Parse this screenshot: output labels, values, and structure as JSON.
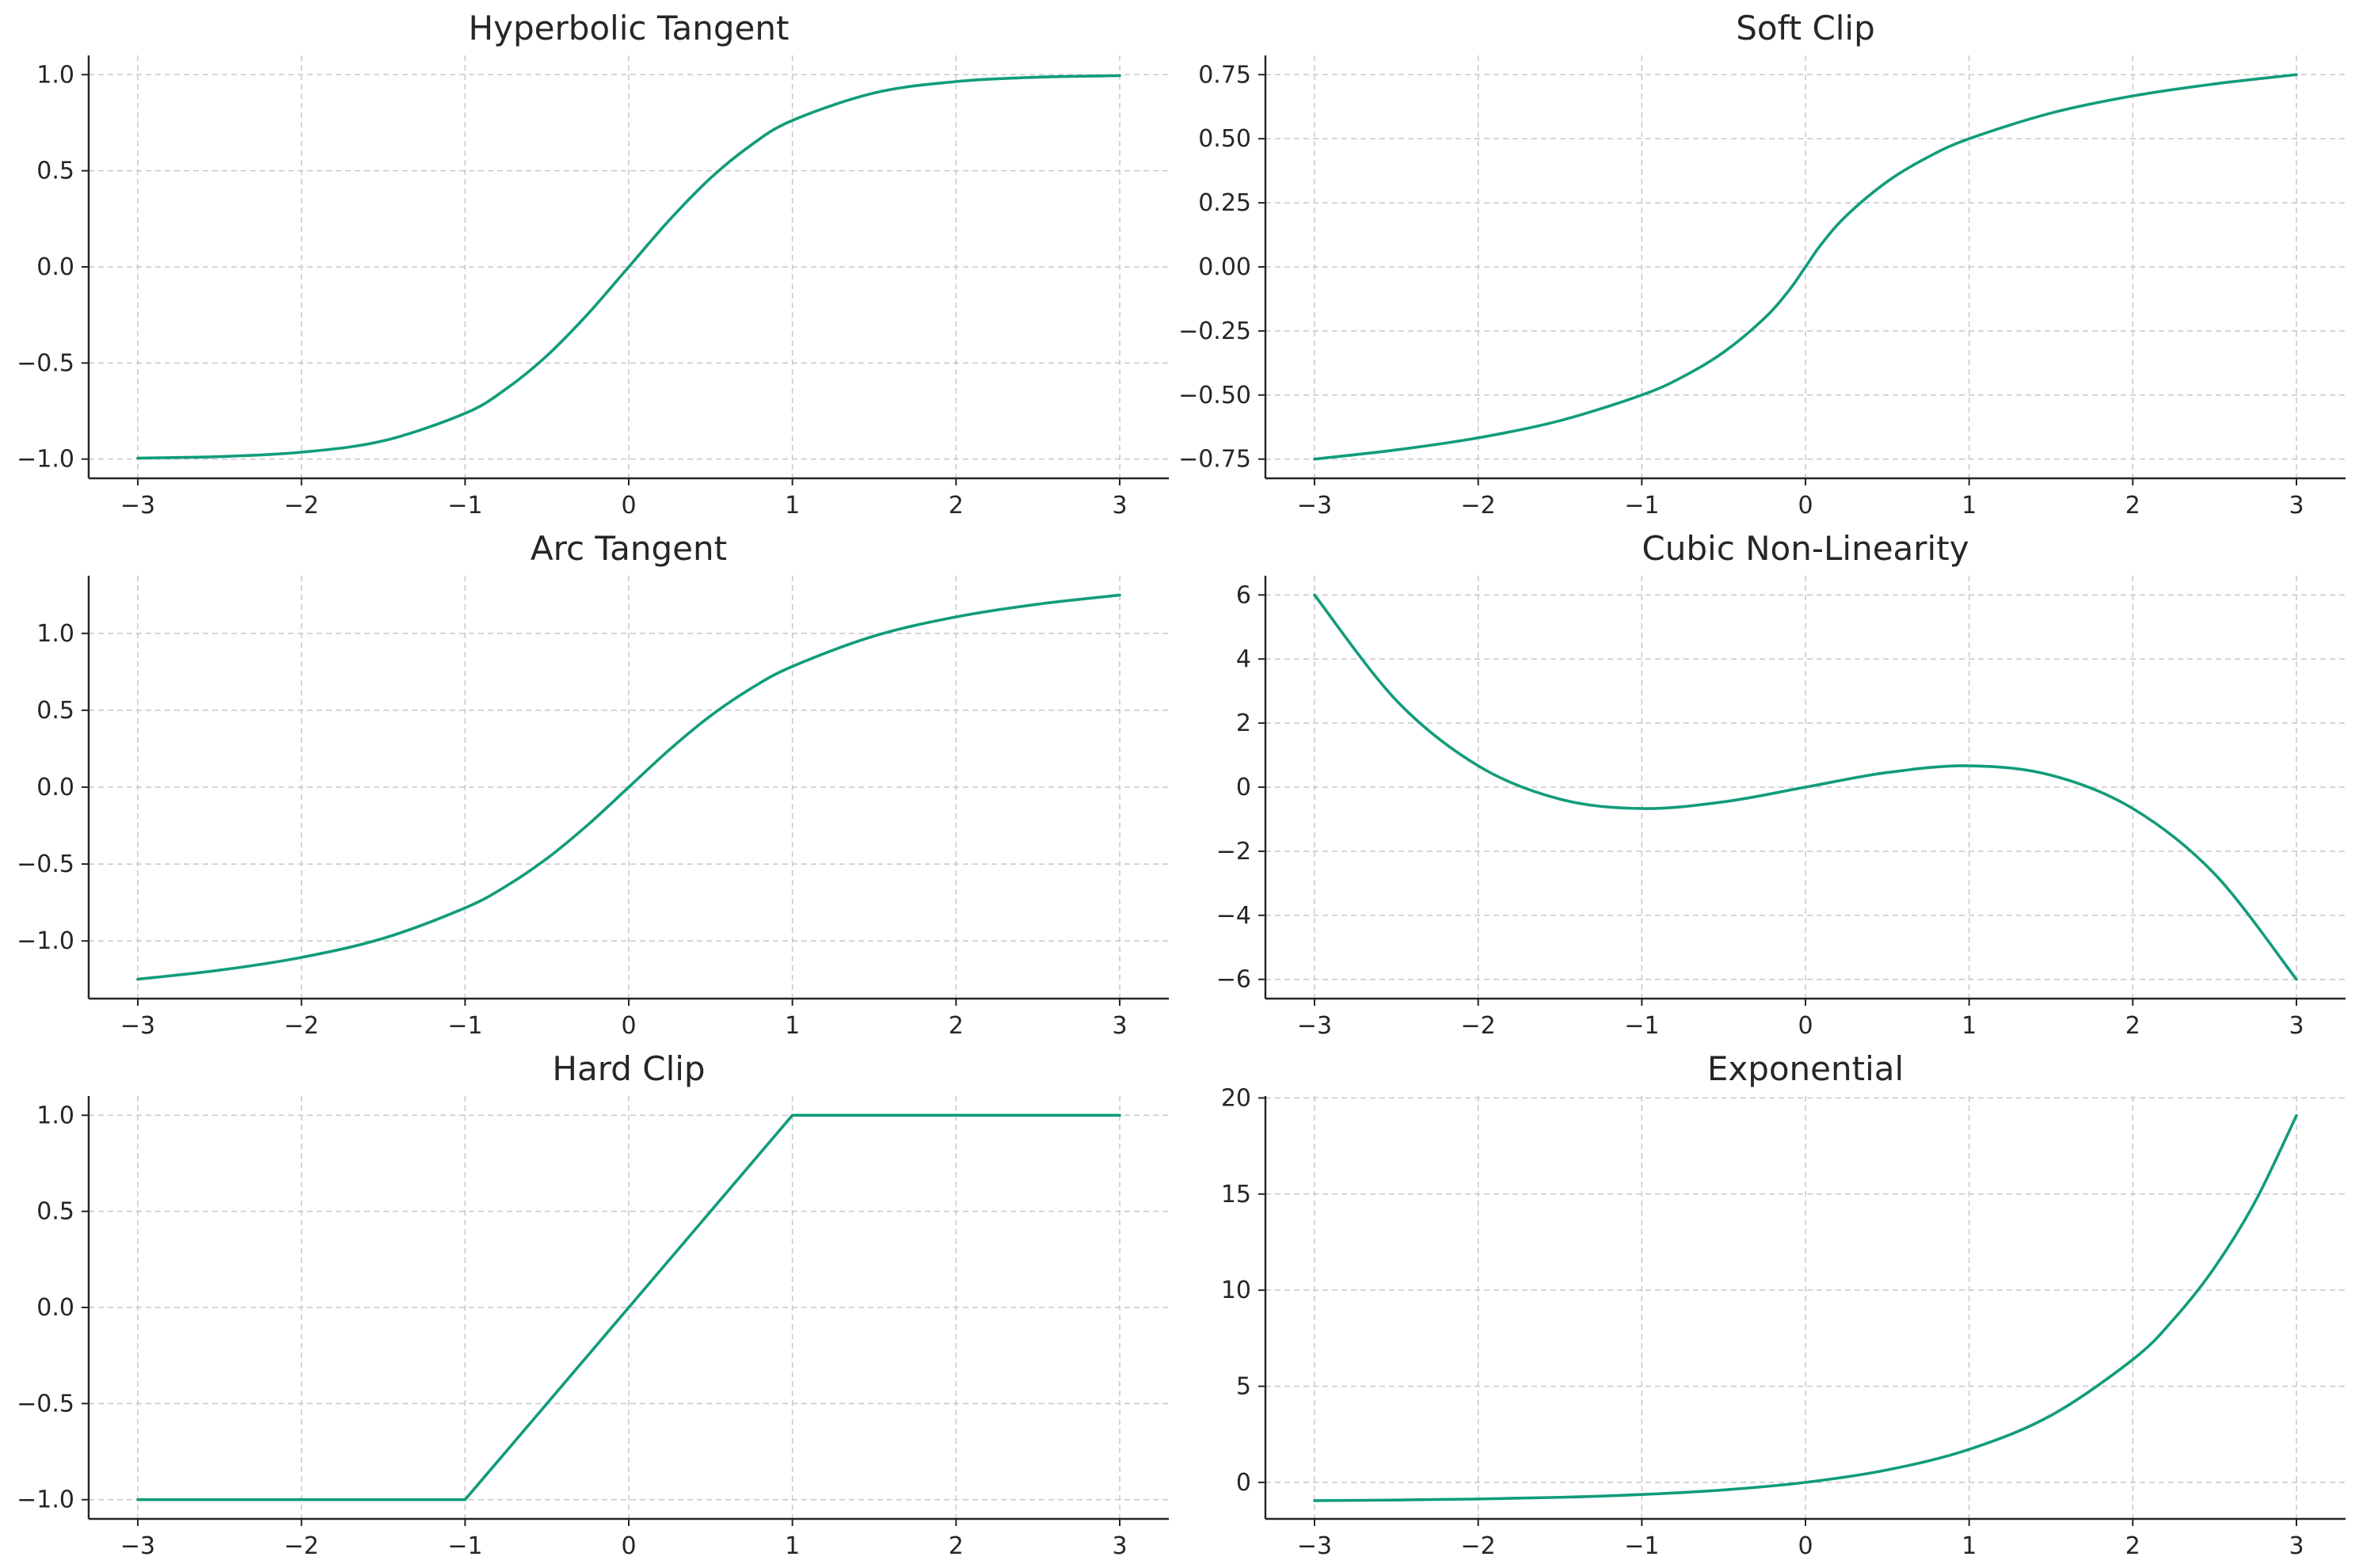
{
  "colors": {
    "series": "#119c7a",
    "axis": "#262626",
    "grid": "#c8c8c8"
  },
  "chart_data": [
    {
      "type": "line",
      "title": "Hyperbolic Tangent",
      "xlabel": "",
      "ylabel": "",
      "xlim": [
        -3.3,
        3.3
      ],
      "ylim": [
        -1.1,
        1.1
      ],
      "xticks": [
        -3,
        -2,
        -1,
        0,
        1,
        2,
        3
      ],
      "xtick_labels": [
        "−3",
        "−2",
        "−1",
        "0",
        "1",
        "2",
        "3"
      ],
      "yticks": [
        -1.0,
        -0.5,
        0.0,
        0.5,
        1.0
      ],
      "ytick_labels": [
        "−1.0",
        "−0.5",
        "0.0",
        "0.5",
        "1.0"
      ],
      "grid": true,
      "series": [
        {
          "x": [
            -3,
            -2.5,
            -2,
            -1.5,
            -1,
            -0.75,
            -0.5,
            -0.25,
            0,
            0.25,
            0.5,
            0.75,
            1,
            1.5,
            2,
            2.5,
            3
          ],
          "y": [
            -0.995,
            -0.987,
            -0.964,
            -0.905,
            -0.762,
            -0.635,
            -0.462,
            -0.245,
            0,
            0.245,
            0.462,
            0.635,
            0.762,
            0.905,
            0.964,
            0.987,
            0.995
          ]
        }
      ]
    },
    {
      "type": "line",
      "title": "Soft Clip",
      "xlabel": "",
      "ylabel": "",
      "xlim": [
        -3.3,
        3.3
      ],
      "ylim": [
        -0.825,
        0.825
      ],
      "xticks": [
        -3,
        -2,
        -1,
        0,
        1,
        2,
        3
      ],
      "xtick_labels": [
        "−3",
        "−2",
        "−1",
        "0",
        "1",
        "2",
        "3"
      ],
      "yticks": [
        -0.75,
        -0.5,
        -0.25,
        0,
        0.25,
        0.5,
        0.75
      ],
      "ytick_labels": [
        "−0.75",
        "−0.50",
        "−0.25",
        "0.00",
        "0.25",
        "0.50",
        "0.75"
      ],
      "grid": true,
      "series": [
        {
          "x": [
            -3,
            -2.5,
            -2,
            -1.5,
            -1,
            -0.75,
            -0.5,
            -0.25,
            -0.1,
            0,
            0.1,
            0.25,
            0.5,
            0.75,
            1,
            1.5,
            2,
            2.5,
            3
          ],
          "y": [
            -0.75,
            -0.714,
            -0.667,
            -0.6,
            -0.5,
            -0.429,
            -0.333,
            -0.2,
            -0.091,
            0,
            0.091,
            0.2,
            0.333,
            0.429,
            0.5,
            0.6,
            0.667,
            0.714,
            0.75
          ]
        }
      ]
    },
    {
      "type": "line",
      "title": "Arc Tangent",
      "xlabel": "",
      "ylabel": "",
      "xlim": [
        -3.3,
        3.3
      ],
      "ylim": [
        -1.375,
        1.375
      ],
      "xticks": [
        -3,
        -2,
        -1,
        0,
        1,
        2,
        3
      ],
      "xtick_labels": [
        "−3",
        "−2",
        "−1",
        "0",
        "1",
        "2",
        "3"
      ],
      "yticks": [
        -1.0,
        -0.5,
        0.0,
        0.5,
        1.0
      ],
      "ytick_labels": [
        "−1.0",
        "−0.5",
        "0.0",
        "0.5",
        "1.0"
      ],
      "grid": true,
      "series": [
        {
          "x": [
            -3,
            -2.5,
            -2,
            -1.5,
            -1,
            -0.75,
            -0.5,
            -0.25,
            0,
            0.25,
            0.5,
            0.75,
            1,
            1.5,
            2,
            2.5,
            3
          ],
          "y": [
            -1.249,
            -1.19,
            -1.107,
            -0.983,
            -0.785,
            -0.644,
            -0.464,
            -0.245,
            0,
            0.245,
            0.464,
            0.644,
            0.785,
            0.983,
            1.107,
            1.19,
            1.249
          ]
        }
      ]
    },
    {
      "type": "line",
      "title": "Cubic Non-Linearity",
      "xlabel": "",
      "ylabel": "",
      "xlim": [
        -3.3,
        3.3
      ],
      "ylim": [
        -6.6,
        6.6
      ],
      "xticks": [
        -3,
        -2,
        -1,
        0,
        1,
        2,
        3
      ],
      "xtick_labels": [
        "−3",
        "−2",
        "−1",
        "0",
        "1",
        "2",
        "3"
      ],
      "yticks": [
        -6,
        -4,
        -2,
        0,
        2,
        4,
        6
      ],
      "ytick_labels": [
        "−6",
        "−4",
        "−2",
        "0",
        "2",
        "4",
        "6"
      ],
      "grid": true,
      "series": [
        {
          "x": [
            -3,
            -2.5,
            -2,
            -1.5,
            -1,
            -0.5,
            0,
            0.5,
            1,
            1.5,
            2,
            2.5,
            3
          ],
          "y": [
            6.0,
            2.708,
            0.667,
            -0.375,
            -0.667,
            -0.458,
            0,
            0.458,
            0.667,
            0.375,
            -0.667,
            -2.708,
            -6.0
          ]
        }
      ]
    },
    {
      "type": "line",
      "title": "Hard Clip",
      "xlabel": "",
      "ylabel": "",
      "xlim": [
        -3.3,
        3.3
      ],
      "ylim": [
        -1.1,
        1.1
      ],
      "xticks": [
        -3,
        -2,
        -1,
        0,
        1,
        2,
        3
      ],
      "xtick_labels": [
        "−3",
        "−2",
        "−1",
        "0",
        "1",
        "2",
        "3"
      ],
      "yticks": [
        -1.0,
        -0.5,
        0.0,
        0.5,
        1.0
      ],
      "ytick_labels": [
        "−1.0",
        "−0.5",
        "0.0",
        "0.5",
        "1.0"
      ],
      "grid": true,
      "series": [
        {
          "x": [
            -3,
            -1,
            1,
            3
          ],
          "y": [
            -1,
            -1,
            1,
            1
          ]
        }
      ]
    },
    {
      "type": "line",
      "title": "Exponential",
      "xlabel": "",
      "ylabel": "",
      "xlim": [
        -3.3,
        3.3
      ],
      "ylim": [
        -1.9,
        20.1
      ],
      "xticks": [
        -3,
        -2,
        -1,
        0,
        1,
        2,
        3
      ],
      "xtick_labels": [
        "−3",
        "−2",
        "−1",
        "0",
        "1",
        "2",
        "3"
      ],
      "yticks": [
        0,
        5,
        10,
        15,
        20
      ],
      "ytick_labels": [
        "0",
        "5",
        "10",
        "15",
        "20"
      ],
      "grid": true,
      "series": [
        {
          "x": [
            -3,
            -2.5,
            -2,
            -1.5,
            -1,
            -0.5,
            0,
            0.5,
            1,
            1.5,
            2,
            2.25,
            2.5,
            2.75,
            3
          ],
          "y": [
            -0.95,
            -0.918,
            -0.865,
            -0.777,
            -0.632,
            -0.393,
            0,
            0.649,
            1.718,
            3.482,
            6.389,
            8.488,
            11.182,
            14.643,
            19.086
          ]
        }
      ]
    }
  ]
}
